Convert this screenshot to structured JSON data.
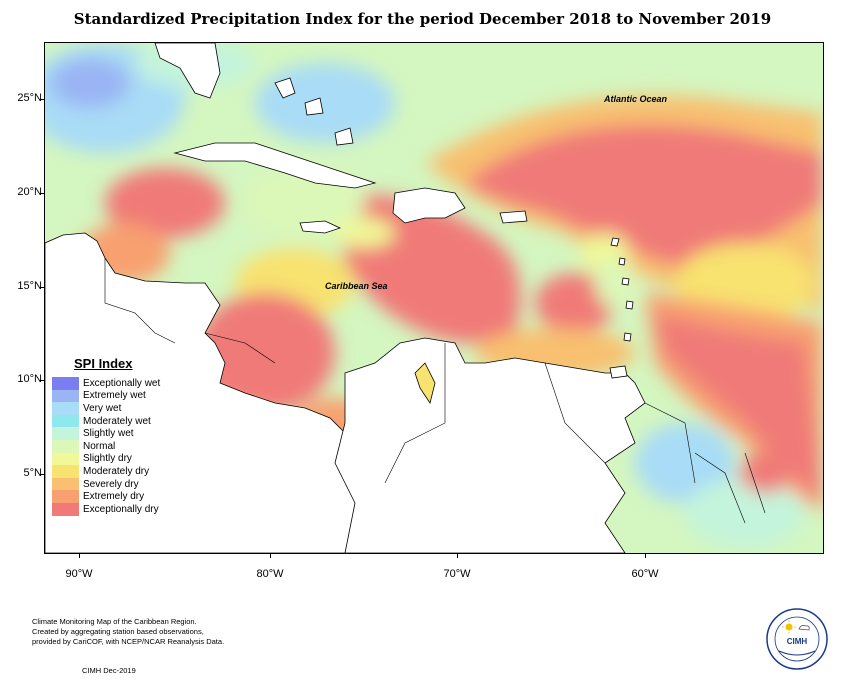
{
  "title": "Standardized Precipitation Index for the period December 2018 to November 2019",
  "lat_labels": [
    "25°N",
    "20°N",
    "15°N",
    "10°N",
    "5°N"
  ],
  "lon_labels": [
    "90°W",
    "80°W",
    "70°W",
    "60°W"
  ],
  "map_labels": {
    "ocean": "Atlantic Ocean",
    "sea": "Caribbean Sea"
  },
  "legend": {
    "title": "SPI Index",
    "items": [
      {
        "label": "Exceptionally wet",
        "color": "#7a7ef0"
      },
      {
        "label": "Extremely wet",
        "color": "#9ab4f4"
      },
      {
        "label": "Very wet",
        "color": "#a9dcf6"
      },
      {
        "label": "Moderately wet",
        "color": "#8fe8ee"
      },
      {
        "label": "Slightly wet",
        "color": "#c4f4dc"
      },
      {
        "label": "Normal",
        "color": "#dcf8b8"
      },
      {
        "label": "Slightly dry",
        "color": "#f0f898"
      },
      {
        "label": "Moderately dry",
        "color": "#f8e270"
      },
      {
        "label": "Severely dry",
        "color": "#f8c070"
      },
      {
        "label": "Extremely dry",
        "color": "#f8a070"
      },
      {
        "label": "Exceptionally dry",
        "color": "#f07a78"
      }
    ]
  },
  "credits": {
    "line1": "Climate Monitoring Map of the Caribbean Region.",
    "line2": "Created by aggregating station based observations,",
    "line3": "provided by CariCOF, with NCEP/NCAR Reanalysis Data.",
    "date": "CIMH Dec-2019"
  },
  "logo": {
    "text": "CIMH"
  }
}
